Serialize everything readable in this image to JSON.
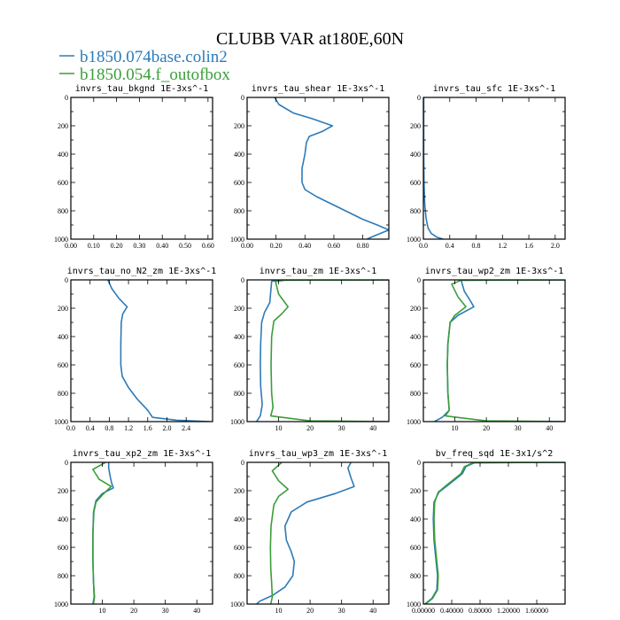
{
  "figure": {
    "title": "CLUBB VAR at180E,60N",
    "legend": [
      {
        "label": "b1850.074base.colin2",
        "color": "#2b7bb9"
      },
      {
        "label": "b1850.054.f_outofbox",
        "color": "#3a9e3a"
      }
    ]
  },
  "chart_data": [
    {
      "type": "line",
      "title": "invrs_tau_bkgnd   1E-3xs^-1",
      "xlim": [
        0,
        0.62
      ],
      "xticks": [
        "0.00",
        "0.10",
        "0.20",
        "0.30",
        "0.40",
        "0.50",
        "0.60"
      ],
      "xtick_values": [
        0,
        0.1,
        0.2,
        0.3,
        0.4,
        0.5,
        0.6
      ],
      "ylim": [
        1000,
        0
      ],
      "yticks": [
        "0",
        "200",
        "400",
        "600",
        "800",
        "1000"
      ],
      "ytick_values": [
        0,
        200,
        400,
        600,
        800,
        1000
      ],
      "series": []
    },
    {
      "type": "line",
      "title": "invrs_tau_shear   1E-3xs^-1",
      "xlim": [
        0,
        0.98
      ],
      "xticks": [
        "0.00",
        "0.20",
        "0.40",
        "0.60",
        "0.80"
      ],
      "xtick_values": [
        0,
        0.2,
        0.4,
        0.6,
        0.8
      ],
      "ylim": [
        1000,
        0
      ],
      "yticks": [
        "0",
        "200",
        "400",
        "600",
        "800",
        "1000"
      ],
      "ytick_values": [
        0,
        200,
        400,
        600,
        800,
        1000
      ],
      "series": [
        {
          "color": "#2b7bb9",
          "points": [
            [
              0.19,
              0
            ],
            [
              0.22,
              50
            ],
            [
              0.32,
              110
            ],
            [
              0.45,
              150
            ],
            [
              0.59,
              200
            ],
            [
              0.52,
              240
            ],
            [
              0.43,
              275
            ],
            [
              0.41,
              320
            ],
            [
              0.4,
              400
            ],
            [
              0.38,
              500
            ],
            [
              0.38,
              600
            ],
            [
              0.4,
              650
            ],
            [
              0.48,
              700
            ],
            [
              0.58,
              750
            ],
            [
              0.7,
              810
            ],
            [
              0.8,
              860
            ],
            [
              0.9,
              900
            ],
            [
              0.98,
              935
            ],
            [
              0.92,
              960
            ],
            [
              0.85,
              990
            ],
            [
              0.83,
              1000
            ]
          ]
        }
      ]
    },
    {
      "type": "line",
      "title": "invrs_tau_sfc   1E-3xs^-1",
      "xlim": [
        0,
        2.15
      ],
      "xticks": [
        "0.0",
        "0.4",
        "0.8",
        "1.2",
        "1.6",
        "2.0"
      ],
      "xtick_values": [
        0,
        0.4,
        0.8,
        1.2,
        1.6,
        2.0
      ],
      "ylim": [
        1000,
        0
      ],
      "yticks": [
        "0",
        "200",
        "400",
        "600",
        "800",
        "1000"
      ],
      "ytick_values": [
        0,
        200,
        400,
        600,
        800,
        1000
      ],
      "series": [
        {
          "color": "#2b7bb9",
          "points": [
            [
              0.005,
              0
            ],
            [
              0.005,
              400
            ],
            [
              0.01,
              600
            ],
            [
              0.02,
              750
            ],
            [
              0.04,
              850
            ],
            [
              0.07,
              920
            ],
            [
              0.12,
              960
            ],
            [
              0.2,
              985
            ],
            [
              0.3,
              1000
            ]
          ]
        }
      ]
    },
    {
      "type": "line",
      "title": "invrs_tau_no_N2_zm   1E-3xs^-1",
      "xlim": [
        0,
        2.95
      ],
      "xticks": [
        "0.0",
        "0.4",
        "0.8",
        "1.2",
        "1.6",
        "2.0",
        "2.4"
      ],
      "xtick_values": [
        0,
        0.4,
        0.8,
        1.2,
        1.6,
        2.0,
        2.4
      ],
      "ylim": [
        1000,
        0
      ],
      "yticks": [
        "0",
        "200",
        "400",
        "600",
        "800",
        "1000"
      ],
      "ytick_values": [
        0,
        200,
        400,
        600,
        800,
        1000
      ],
      "series": [
        {
          "color": "#2b7bb9",
          "points": [
            [
              0.77,
              0
            ],
            [
              0.85,
              60
            ],
            [
              1.0,
              130
            ],
            [
              1.17,
              190
            ],
            [
              1.08,
              240
            ],
            [
              1.05,
              300
            ],
            [
              1.04,
              450
            ],
            [
              1.04,
              600
            ],
            [
              1.07,
              680
            ],
            [
              1.2,
              760
            ],
            [
              1.38,
              840
            ],
            [
              1.6,
              920
            ],
            [
              1.7,
              970
            ],
            [
              2.2,
              990
            ],
            [
              2.9,
              1000
            ]
          ]
        }
      ]
    },
    {
      "type": "line",
      "title": "invrs_tau_zm   1E-3xs^-1",
      "xlim": [
        0,
        45
      ],
      "xticks": [
        "10",
        "20",
        "30",
        "40"
      ],
      "xtick_values": [
        10,
        20,
        30,
        40
      ],
      "ylim": [
        1000,
        0
      ],
      "yticks": [
        "0",
        "200",
        "400",
        "600",
        "800",
        "1000"
      ],
      "ytick_values": [
        0,
        200,
        400,
        600,
        800,
        1000
      ],
      "series": [
        {
          "color": "#2b7bb9",
          "points": [
            [
              45,
              0
            ],
            [
              10,
              2
            ],
            [
              7.8,
              10
            ],
            [
              7.5,
              80
            ],
            [
              7.2,
              160
            ],
            [
              5.5,
              230
            ],
            [
              4.6,
              300
            ],
            [
              4.3,
              450
            ],
            [
              4.2,
              600
            ],
            [
              4.3,
              750
            ],
            [
              4.8,
              880
            ],
            [
              4.2,
              960
            ],
            [
              3.0,
              1000
            ]
          ]
        },
        {
          "color": "#3a9e3a",
          "points": [
            [
              45,
              0
            ],
            [
              12,
              2
            ],
            [
              9,
              12
            ],
            [
              10,
              100
            ],
            [
              13,
              190
            ],
            [
              11,
              240
            ],
            [
              8.5,
              290
            ],
            [
              7.8,
              400
            ],
            [
              7.6,
              600
            ],
            [
              7.8,
              800
            ],
            [
              8.2,
              900
            ],
            [
              7.5,
              960
            ],
            [
              20,
              995
            ],
            [
              45,
              1000
            ]
          ]
        }
      ]
    },
    {
      "type": "line",
      "title": "invrs_tau_wp2_zm   1E-3xs^-1",
      "xlim": [
        0,
        45
      ],
      "xticks": [
        "10",
        "20",
        "30",
        "40"
      ],
      "xtick_values": [
        10,
        20,
        30,
        40
      ],
      "ylim": [
        1000,
        0
      ],
      "yticks": [
        "0",
        "200",
        "400",
        "600",
        "800",
        "1000"
      ],
      "ytick_values": [
        0,
        200,
        400,
        600,
        800,
        1000
      ],
      "series": [
        {
          "color": "#2b7bb9",
          "points": [
            [
              45,
              0
            ],
            [
              12,
              3
            ],
            [
              13,
              80
            ],
            [
              15,
              150
            ],
            [
              16,
              190
            ],
            [
              11,
              250
            ],
            [
              8.5,
              300
            ],
            [
              7.8,
              450
            ],
            [
              7.6,
              600
            ],
            [
              7.8,
              800
            ],
            [
              8.2,
              920
            ],
            [
              6.0,
              970
            ],
            [
              3.5,
              1000
            ]
          ]
        },
        {
          "color": "#3a9e3a",
          "points": [
            [
              45,
              0
            ],
            [
              12,
              2
            ],
            [
              9,
              30
            ],
            [
              11,
              120
            ],
            [
              13.5,
              190
            ],
            [
              10,
              250
            ],
            [
              8.5,
              300
            ],
            [
              7.8,
              450
            ],
            [
              7.6,
              600
            ],
            [
              7.8,
              800
            ],
            [
              8.2,
              920
            ],
            [
              7,
              960
            ],
            [
              20,
              995
            ],
            [
              45,
              1000
            ]
          ]
        }
      ]
    },
    {
      "type": "line",
      "title": "invrs_tau_xp2_zm   1E-3xs^-1",
      "xlim": [
        0,
        45
      ],
      "xticks": [
        "10",
        "20",
        "30",
        "40"
      ],
      "xtick_values": [
        10,
        20,
        30,
        40
      ],
      "ylim": [
        1000,
        0
      ],
      "yticks": [
        "0",
        "200",
        "400",
        "600",
        "800",
        "1000"
      ],
      "ytick_values": [
        0,
        200,
        400,
        600,
        800,
        1000
      ],
      "series": [
        {
          "color": "#2b7bb9",
          "points": [
            [
              12,
              0
            ],
            [
              12,
              40
            ],
            [
              12.5,
              100
            ],
            [
              13,
              150
            ],
            [
              13.5,
              180
            ],
            [
              10,
              220
            ],
            [
              8,
              270
            ],
            [
              7.2,
              350
            ],
            [
              7,
              500
            ],
            [
              7,
              700
            ],
            [
              7.2,
              850
            ],
            [
              7.4,
              950
            ],
            [
              7.0,
              1000
            ]
          ]
        },
        {
          "color": "#3a9e3a",
          "points": [
            [
              11,
              0
            ],
            [
              7,
              50
            ],
            [
              9,
              120
            ],
            [
              12.8,
              170
            ],
            [
              10,
              230
            ],
            [
              8,
              280
            ],
            [
              7.3,
              350
            ],
            [
              7,
              500
            ],
            [
              7,
              700
            ],
            [
              7.2,
              850
            ],
            [
              7.5,
              950
            ],
            [
              7.2,
              1000
            ]
          ]
        }
      ]
    },
    {
      "type": "line",
      "title": "invrs_tau_wp3_zm   1E-3xs^-1",
      "xlim": [
        0,
        45
      ],
      "xticks": [
        "10",
        "20",
        "30",
        "40"
      ],
      "xtick_values": [
        10,
        20,
        30,
        40
      ],
      "ylim": [
        1000,
        0
      ],
      "yticks": [
        "0",
        "200",
        "400",
        "600",
        "800",
        "1000"
      ],
      "ytick_values": [
        0,
        200,
        400,
        600,
        800,
        1000
      ],
      "series": [
        {
          "color": "#2b7bb9",
          "points": [
            [
              33,
              0
            ],
            [
              32,
              40
            ],
            [
              33,
              110
            ],
            [
              34,
              170
            ],
            [
              28,
              220
            ],
            [
              19,
              280
            ],
            [
              14,
              350
            ],
            [
              12,
              450
            ],
            [
              12.5,
              550
            ],
            [
              14,
              630
            ],
            [
              15,
              700
            ],
            [
              14.5,
              800
            ],
            [
              12,
              880
            ],
            [
              8,
              940
            ],
            [
              4,
              980
            ],
            [
              3,
              1000
            ]
          ]
        },
        {
          "color": "#3a9e3a",
          "points": [
            [
              11,
              0
            ],
            [
              8,
              60
            ],
            [
              10,
              130
            ],
            [
              13,
              190
            ],
            [
              10,
              240
            ],
            [
              8.5,
              300
            ],
            [
              7.6,
              450
            ],
            [
              7.4,
              600
            ],
            [
              7.5,
              750
            ],
            [
              7.8,
              850
            ],
            [
              8,
              950
            ],
            [
              7.5,
              1000
            ]
          ]
        }
      ]
    },
    {
      "type": "line",
      "title": "bv_freq_sqd   1E-3x1/s^2",
      "xlim": [
        0,
        2.0
      ],
      "xticks": [
        "0.00000",
        "0.40000",
        "0.80000",
        "1.20000",
        "1.60000"
      ],
      "xtick_values": [
        0,
        0.4,
        0.8,
        1.2,
        1.6
      ],
      "ylim": [
        1000,
        0
      ],
      "yticks": [
        "0",
        "200",
        "400",
        "600",
        "800",
        "1000"
      ],
      "ytick_values": [
        0,
        200,
        400,
        600,
        800,
        1000
      ],
      "series": [
        {
          "color": "#2b7bb9",
          "points": [
            [
              2.0,
              0
            ],
            [
              0.72,
              3
            ],
            [
              0.6,
              30
            ],
            [
              0.55,
              80
            ],
            [
              0.45,
              120
            ],
            [
              0.35,
              160
            ],
            [
              0.22,
              210
            ],
            [
              0.15,
              280
            ],
            [
              0.14,
              400
            ],
            [
              0.15,
              550
            ],
            [
              0.18,
              700
            ],
            [
              0.2,
              800
            ],
            [
              0.19,
              900
            ],
            [
              0.12,
              960
            ],
            [
              0.02,
              1000
            ]
          ]
        },
        {
          "color": "#3a9e3a",
          "points": [
            [
              2.0,
              0
            ],
            [
              0.7,
              3
            ],
            [
              0.58,
              30
            ],
            [
              0.53,
              80
            ],
            [
              0.43,
              120
            ],
            [
              0.33,
              160
            ],
            [
              0.21,
              210
            ],
            [
              0.16,
              280
            ],
            [
              0.15,
              400
            ],
            [
              0.16,
              550
            ],
            [
              0.19,
              700
            ],
            [
              0.21,
              800
            ],
            [
              0.2,
              900
            ],
            [
              0.13,
              960
            ],
            [
              0.03,
              1000
            ]
          ]
        }
      ]
    }
  ]
}
